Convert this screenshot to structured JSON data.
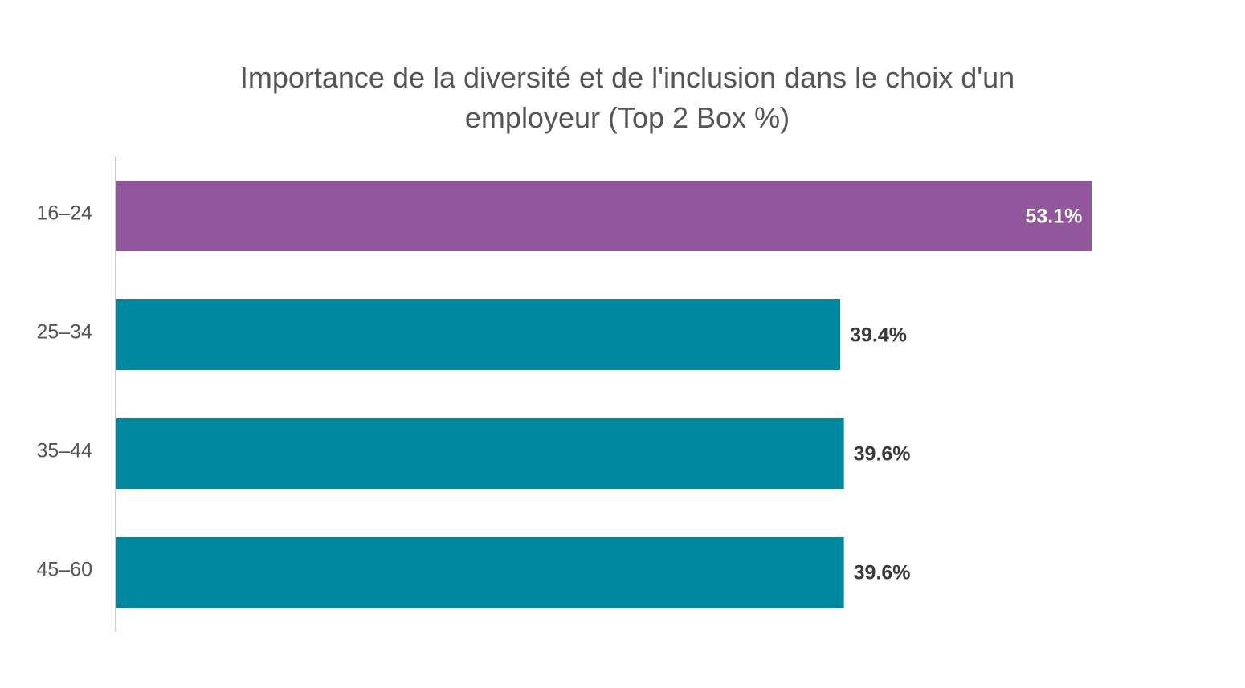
{
  "chart_data": {
    "type": "bar",
    "orientation": "horizontal",
    "title_lines": [
      "Importance de la diversité et de l'inclusion dans le choix d'un",
      "employeur (Top 2 Box %)"
    ],
    "categories": [
      "16–24",
      "25–34",
      "35–44",
      "45–60"
    ],
    "values": [
      53.1,
      39.4,
      39.6,
      39.6
    ],
    "value_labels": [
      "53.1%",
      "39.4%",
      "39.6%",
      "39.6%"
    ],
    "highlight_index": 0,
    "colors": {
      "highlight": "#92569C",
      "default": "#0088A0",
      "label_on_bar": "#FFFFFF",
      "label_outside": "#3A3A3A",
      "axis_line": "#CCCCCC",
      "category_text": "#555555"
    },
    "xlim": [
      0,
      60
    ],
    "grid": false,
    "legend": "none"
  }
}
